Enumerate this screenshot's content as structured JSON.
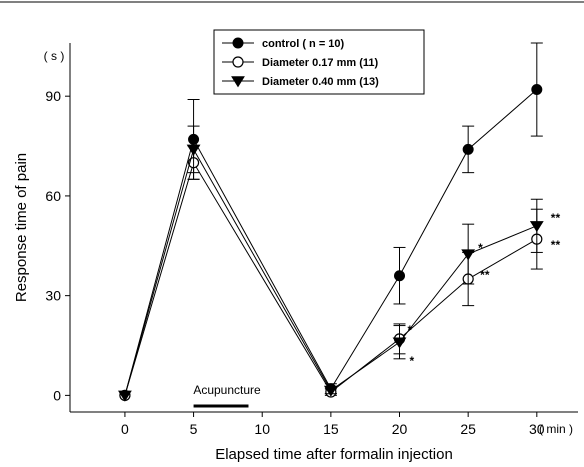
{
  "chart_data": {
    "type": "line",
    "title": "",
    "xlabel": "Elapsed time after formalin injection",
    "ylabel": "Response time of pain",
    "x_unit": "( min )",
    "y_unit": "( s )",
    "x": [
      0,
      5,
      15,
      20,
      25,
      30
    ],
    "x_ticks": [
      0,
      5,
      10,
      15,
      20,
      25,
      30
    ],
    "y_ticks": [
      0,
      30,
      60,
      90
    ],
    "xlim": [
      -4,
      33
    ],
    "ylim": [
      -5,
      106
    ],
    "legend_position": "top-center",
    "annotation": {
      "label": "Acupuncture",
      "x_start": 5,
      "x_end": 9
    },
    "series": [
      {
        "name": "control ( n = 10)",
        "marker": "filled-circle",
        "values": [
          0,
          77,
          2,
          36,
          74,
          92
        ],
        "errors": [
          0,
          12,
          1.5,
          8.5,
          7,
          14
        ],
        "significance": [
          "",
          "",
          "",
          "",
          "",
          ""
        ]
      },
      {
        "name": "Diameter 0.17 mm (11)",
        "marker": "open-circle",
        "values": [
          0,
          70,
          1,
          17,
          35,
          47
        ],
        "errors": [
          0,
          5,
          1,
          4.5,
          8,
          9
        ],
        "significance": [
          "",
          "",
          "",
          "*",
          "**",
          "**"
        ]
      },
      {
        "name": "Diameter 0.40 mm (13)",
        "marker": "filled-triangle-down",
        "values": [
          0,
          74,
          1.5,
          16,
          42.5,
          51
        ],
        "errors": [
          0,
          7,
          1,
          5,
          9,
          8
        ],
        "significance": [
          "",
          "",
          "",
          "*",
          "*",
          "**"
        ]
      }
    ]
  }
}
